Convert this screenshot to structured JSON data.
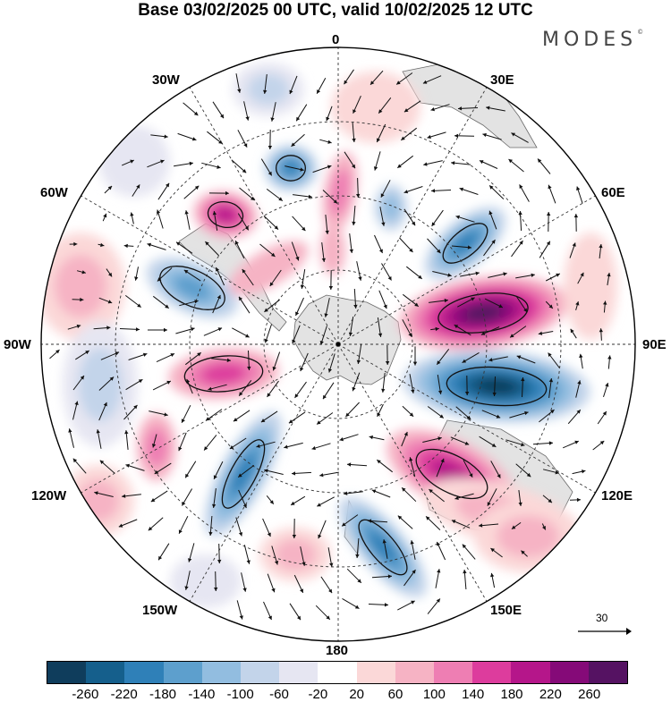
{
  "title": "Base 03/02/2025 00 UTC, valid 10/02/2025 12 UTC",
  "logo_text": "MODES",
  "logo_mark": "©",
  "longitude_labels": [
    "0",
    "30E",
    "60E",
    "90E",
    "120E",
    "150E",
    "180",
    "150W",
    "120W",
    "90W",
    "60W",
    "30W"
  ],
  "reference_vector_label": "30",
  "colorbar": {
    "ticks": [
      "-260",
      "-220",
      "-180",
      "-140",
      "-100",
      "-60",
      "-20",
      "20",
      "60",
      "100",
      "140",
      "180",
      "220",
      "260"
    ],
    "colors": [
      "#0f3d5c",
      "#155f8c",
      "#2f80b8",
      "#5d9fcd",
      "#92bde0",
      "#c3d4ea",
      "#e6e6f2",
      "#ffffff",
      "#fbd8d8",
      "#f6b3c4",
      "#ee7eb3",
      "#dd3c9d",
      "#b5168a",
      "#850a78",
      "#551262"
    ]
  },
  "colors": {
    "land": "#e3e3e3",
    "coast": "#6a6a6a",
    "grid": "#333333",
    "vector": "#111111"
  }
}
